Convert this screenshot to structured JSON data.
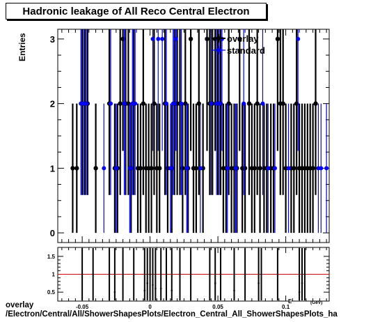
{
  "title": "Hadronic leakage of All Reco Central Electron",
  "ylabel": "Entries",
  "footer": {
    "line1": "overlay",
    "line2": "/Electron/Central/All/ShowerShapesPlots/Electron_Central_All_ShowerShapesPlots_ha"
  },
  "colors": {
    "overlay": "#000000",
    "standard": "#0000ff",
    "ratio_line": "#cc0000"
  },
  "chart_data": [
    {
      "type": "scatter",
      "xlim": [
        -0.068,
        0.132
      ],
      "ylim": [
        -0.15,
        3.15
      ],
      "yticks": [
        0,
        1,
        2,
        3
      ],
      "legend_position": "top-right",
      "series": [
        {
          "name": "overlay",
          "points": [
            [
              -0.057,
              1
            ],
            [
              -0.054,
              1
            ],
            [
              -0.05,
              2
            ],
            [
              -0.048,
              2
            ],
            [
              -0.046,
              2
            ],
            [
              -0.04,
              1
            ],
            [
              -0.03,
              2
            ],
            [
              -0.026,
              1
            ],
            [
              -0.024,
              1
            ],
            [
              -0.022,
              2
            ],
            [
              -0.02,
              3
            ],
            [
              -0.018,
              2
            ],
            [
              -0.016,
              2
            ],
            [
              -0.014,
              1
            ],
            [
              -0.012,
              2
            ],
            [
              -0.009,
              1
            ],
            [
              -0.007,
              1
            ],
            [
              -0.005,
              2
            ],
            [
              -0.003,
              1
            ],
            [
              -0.001,
              1
            ],
            [
              0.001,
              1
            ],
            [
              0.003,
              2
            ],
            [
              0.005,
              1
            ],
            [
              0.007,
              1
            ],
            [
              0.011,
              2
            ],
            [
              0.013,
              1
            ],
            [
              0.016,
              1
            ],
            [
              0.018,
              2
            ],
            [
              0.02,
              2
            ],
            [
              0.022,
              2
            ],
            [
              0.024,
              1
            ],
            [
              0.026,
              2
            ],
            [
              0.028,
              1
            ],
            [
              0.03,
              3
            ],
            [
              0.032,
              1
            ],
            [
              0.034,
              1
            ],
            [
              0.036,
              2
            ],
            [
              0.039,
              1
            ],
            [
              0.042,
              3
            ],
            [
              0.044,
              2
            ],
            [
              0.046,
              2
            ],
            [
              0.048,
              3
            ],
            [
              0.05,
              2
            ],
            [
              0.052,
              2
            ],
            [
              0.054,
              1
            ],
            [
              0.056,
              1
            ],
            [
              0.058,
              2
            ],
            [
              0.06,
              1
            ],
            [
              0.062,
              1
            ],
            [
              0.064,
              1
            ],
            [
              0.066,
              3
            ],
            [
              0.068,
              1
            ],
            [
              0.07,
              1
            ],
            [
              0.073,
              2
            ],
            [
              0.075,
              1
            ],
            [
              0.077,
              1
            ],
            [
              0.079,
              2
            ],
            [
              0.081,
              1
            ],
            [
              0.084,
              1
            ],
            [
              0.086,
              1
            ],
            [
              0.089,
              1
            ],
            [
              0.091,
              1
            ],
            [
              0.094,
              3
            ],
            [
              0.096,
              2
            ],
            [
              0.098,
              2
            ],
            [
              0.1,
              1
            ],
            [
              0.104,
              1
            ],
            [
              0.106,
              1
            ],
            [
              0.108,
              2
            ],
            [
              0.11,
              1
            ],
            [
              0.112,
              1
            ],
            [
              0.114,
              1
            ],
            [
              0.116,
              1
            ],
            [
              0.118,
              1
            ],
            [
              0.12,
              1
            ],
            [
              0.122,
              2
            ]
          ]
        },
        {
          "name": "standard",
          "points": [
            [
              -0.051,
              2
            ],
            [
              -0.049,
              2
            ],
            [
              -0.047,
              2
            ],
            [
              -0.034,
              1
            ],
            [
              -0.029,
              2
            ],
            [
              -0.025,
              1
            ],
            [
              -0.019,
              2
            ],
            [
              -0.015,
              1
            ],
            [
              -0.013,
              2
            ],
            [
              -0.011,
              2
            ],
            [
              0.002,
              3
            ],
            [
              0.006,
              3
            ],
            [
              0.009,
              3
            ],
            [
              0.012,
              2
            ],
            [
              0.015,
              1
            ],
            [
              0.017,
              2
            ],
            [
              0.019,
              3
            ],
            [
              0.023,
              2
            ],
            [
              0.027,
              1
            ],
            [
              0.037,
              1
            ],
            [
              0.045,
              2
            ],
            [
              0.049,
              2
            ],
            [
              0.051,
              2
            ],
            [
              0.053,
              3
            ],
            [
              0.057,
              1
            ],
            [
              0.063,
              1
            ],
            [
              0.069,
              2
            ],
            [
              0.083,
              2
            ],
            [
              0.087,
              1
            ],
            [
              0.092,
              1
            ],
            [
              0.102,
              1
            ],
            [
              0.109,
              3
            ],
            [
              0.124,
              1
            ],
            [
              0.126,
              1
            ],
            [
              0.13,
              1
            ]
          ]
        }
      ]
    },
    {
      "type": "scatter",
      "xlim": [
        -0.068,
        0.132
      ],
      "ylim": [
        0.25,
        1.75
      ],
      "xlabel": "E",
      "xunit": "(GeV)",
      "xticks": [
        -0.05,
        0,
        0.05,
        0.1
      ],
      "xtick_labels": [
        "-0.05",
        "0",
        "0.05",
        "0.1"
      ],
      "yticks": [
        0.5,
        1,
        1.5
      ],
      "reference_line": 1,
      "series": [
        {
          "name": "ratio",
          "points": [
            [
              -0.05,
              1
            ],
            [
              -0.042,
              1
            ],
            [
              -0.03,
              1
            ],
            [
              -0.026,
              0.5
            ],
            [
              -0.02,
              1
            ],
            [
              -0.012,
              1
            ],
            [
              -0.004,
              0.55
            ],
            [
              -0.002,
              0.75
            ],
            [
              0.0,
              1
            ],
            [
              0.002,
              0.7
            ],
            [
              0.004,
              0.6
            ],
            [
              0.008,
              0.6
            ],
            [
              0.012,
              1
            ],
            [
              0.016,
              0.55
            ],
            [
              0.022,
              1
            ],
            [
              0.03,
              1
            ],
            [
              0.044,
              1
            ],
            [
              0.048,
              0.75
            ],
            [
              0.052,
              1
            ],
            [
              0.062,
              0.55
            ],
            [
              0.07,
              1
            ],
            [
              0.08,
              0.75
            ],
            [
              0.082,
              1
            ],
            [
              0.094,
              1
            ],
            [
              0.11,
              0.5
            ],
            [
              0.112,
              0.75
            ],
            [
              0.114,
              1
            ]
          ]
        }
      ]
    }
  ]
}
